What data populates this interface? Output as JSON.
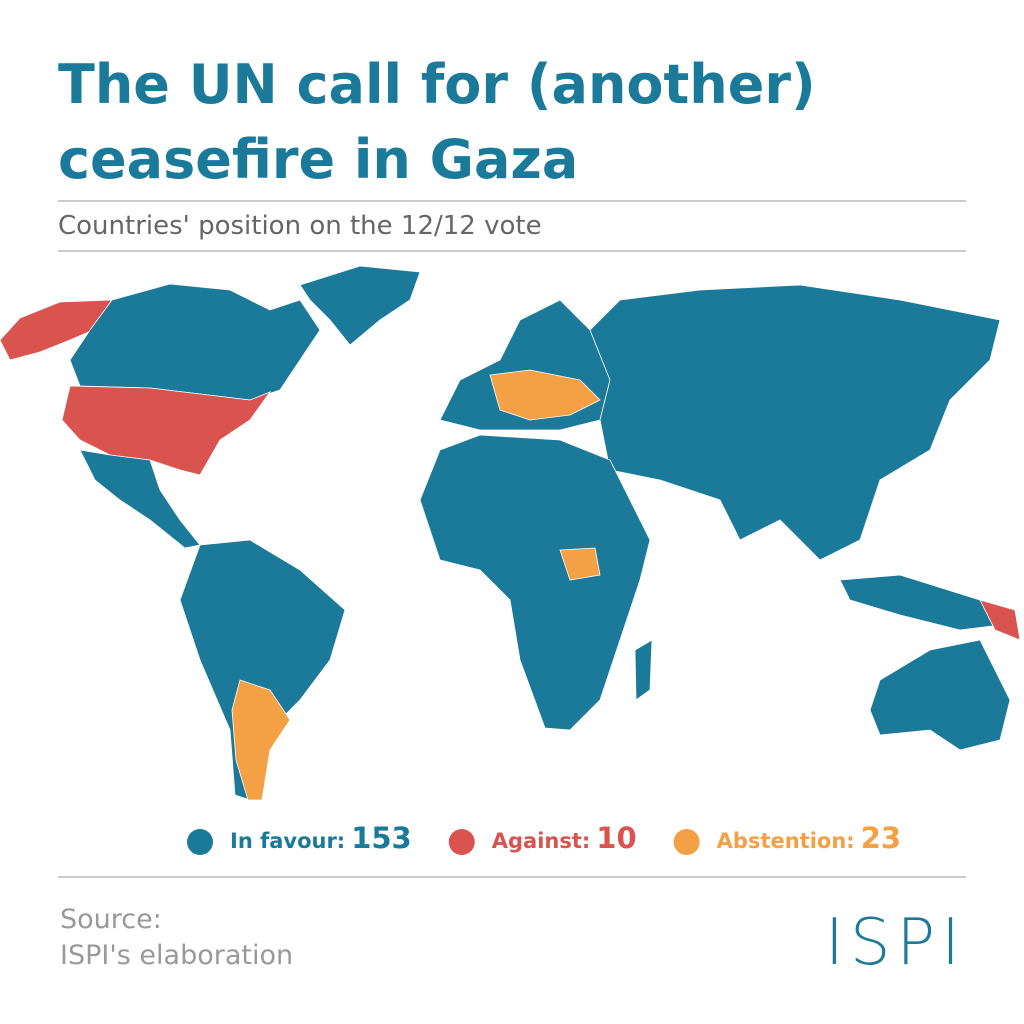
{
  "header": {
    "title_lines": [
      "The UN call for (another)",
      "ceasefire in Gaza"
    ],
    "subtitle": "Countries' position on the 12/12 vote"
  },
  "legend": [
    {
      "label": "In favour:",
      "count": 153,
      "color": "#1b7a99"
    },
    {
      "label": "Against:",
      "count": 10,
      "color": "#d9534f"
    },
    {
      "label": "Abstention:",
      "count": 23,
      "color": "#f4a044"
    }
  ],
  "footer": {
    "source_label": "Source:",
    "source": "ISPI's elaboration",
    "logo": "ISPI"
  }
}
